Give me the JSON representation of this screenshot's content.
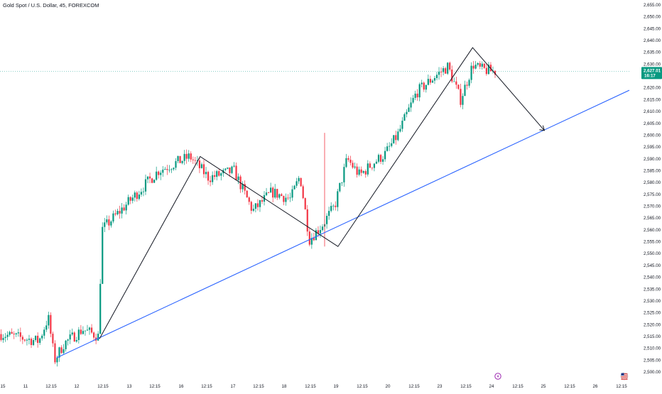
{
  "header": {
    "title": "Gold Spot / U.S. Dollar, 45, FOREXCOM"
  },
  "price_tag": {
    "price": "2,627.01",
    "countdown": "16:17",
    "color": "#089981"
  },
  "colors": {
    "up": "#089981",
    "down": "#f23645",
    "trendline": "#2962ff",
    "zigzag": "#131722",
    "price_line": "#26a69a"
  },
  "icons": {
    "event_icon": "lightning-icon",
    "flag_icon": "us-flag-icon"
  },
  "chart_data": {
    "type": "candlestick",
    "title": "Gold Spot / U.S. Dollar, 45, FOREXCOM",
    "y_ticks": [
      "2,655.00",
      "2,650.00",
      "2,645.00",
      "2,640.00",
      "2,635.00",
      "2,630.00",
      "2,625.00",
      "2,620.00",
      "2,615.00",
      "2,610.00",
      "2,605.00",
      "2,600.00",
      "2,595.00",
      "2,590.00",
      "2,585.00",
      "2,580.00",
      "2,575.00",
      "2,570.00",
      "2,565.00",
      "2,560.00",
      "2,555.00",
      "2,550.00",
      "2,545.00",
      "2,540.00",
      "2,535.00",
      "2,530.00",
      "2,525.00",
      "2,520.00",
      "2,515.00",
      "2,510.00",
      "2,505.00",
      "2,500.00"
    ],
    "ylim": [
      2500,
      2655
    ],
    "x_ticks": [
      "15",
      "11",
      "12:15",
      "12",
      "12:15",
      "13",
      "12:15",
      "16",
      "12:15",
      "17",
      "12:15",
      "18",
      "12:15",
      "19",
      "12:15",
      "20",
      "12:15",
      "23",
      "12:15",
      "24",
      "12:15",
      "25",
      "12:15",
      "26",
      "12:15"
    ],
    "current_price": 2627.01,
    "trendline": [
      [
        0.0,
        2506
      ],
      [
        1.0,
        2619
      ]
    ],
    "zigzag": [
      [
        0.0,
        2514
      ],
      [
        0.0,
        2591
      ],
      [
        0.0,
        2553
      ],
      [
        0.0,
        2637
      ],
      [
        0.0,
        2602
      ]
    ],
    "price_path": [
      [
        0.0,
        2516
      ],
      [
        0.06,
        2513
      ],
      [
        0.075,
        2523
      ],
      [
        0.085,
        2505
      ],
      [
        0.1,
        2512
      ],
      [
        0.13,
        2518
      ],
      [
        0.155,
        2515
      ],
      [
        0.16,
        2560
      ],
      [
        0.2,
        2571
      ],
      [
        0.25,
        2585
      ],
      [
        0.3,
        2591
      ],
      [
        0.33,
        2582
      ],
      [
        0.37,
        2585
      ],
      [
        0.4,
        2568
      ],
      [
        0.43,
        2576
      ],
      [
        0.46,
        2573
      ],
      [
        0.475,
        2583
      ],
      [
        0.49,
        2556
      ],
      [
        0.51,
        2562
      ],
      [
        0.53,
        2570
      ],
      [
        0.55,
        2590
      ],
      [
        0.57,
        2583
      ],
      [
        0.59,
        2588
      ],
      [
        0.61,
        2592
      ],
      [
        0.63,
        2600
      ],
      [
        0.66,
        2618
      ],
      [
        0.69,
        2625
      ],
      [
        0.71,
        2629
      ],
      [
        0.73,
        2615
      ],
      [
        0.75,
        2630
      ],
      [
        0.76,
        2628
      ],
      [
        0.78,
        2627
      ]
    ]
  }
}
